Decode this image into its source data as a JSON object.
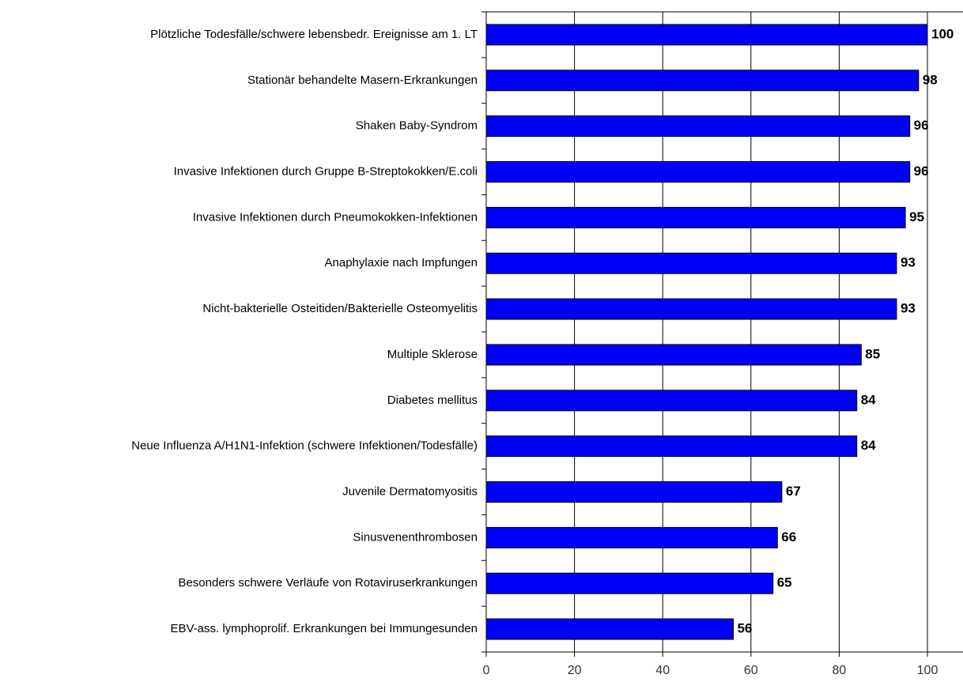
{
  "chart_data": {
    "type": "barh",
    "categories": [
      "Plötzliche Todesfälle/schwere lebensbedr. Ereignisse am 1. LT",
      "Stationär behandelte Masern-Erkrankungen",
      "Shaken Baby-Syndrom",
      "Invasive Infektionen durch Gruppe B-Streptokokken/E.coli",
      "Invasive Infektionen durch Pneumokokken-Infektionen",
      "Anaphylaxie nach Impfungen",
      "Nicht-bakterielle Osteitiden/Bakterielle Osteomyelitis",
      "Multiple Sklerose",
      "Diabetes mellitus",
      "Neue Influenza A/H1N1-Infektion (schwere Infektionen/Todesfälle)",
      "Juvenile Dermatomyositis",
      "Sinusvenenthrombosen",
      "Besonders schwere Verläufe von Rotaviruserkrankungen",
      "EBV-ass. lymphoprolif. Erkrankungen bei Immungesunden"
    ],
    "values": [
      100,
      98,
      96,
      96,
      95,
      93,
      93,
      85,
      84,
      84,
      67,
      66,
      65,
      56
    ],
    "color": "#0000ff",
    "xlim": [
      0,
      100
    ],
    "xticks": [
      0,
      20,
      40,
      60,
      80,
      100
    ],
    "grid": true
  }
}
